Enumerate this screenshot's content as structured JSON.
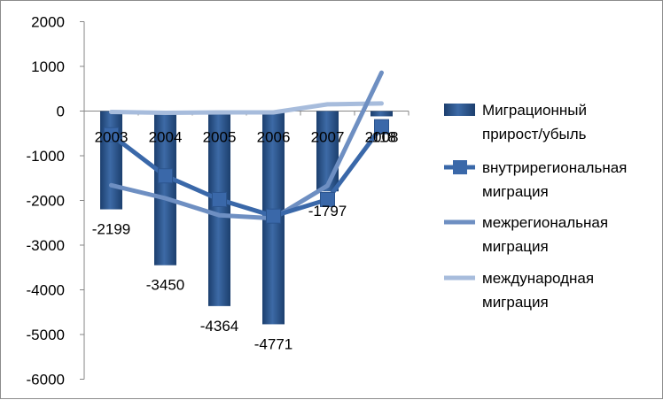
{
  "chart_data": {
    "type": "bar",
    "categories": [
      "2003",
      "2004",
      "2005",
      "2006",
      "2007",
      "2008"
    ],
    "ylim": [
      -6000,
      2000
    ],
    "yticks": [
      2000,
      1000,
      0,
      -1000,
      -2000,
      -3000,
      -4000,
      -5000,
      -6000
    ],
    "grid": false,
    "legend_position": "right",
    "series": [
      {
        "name": "Миграционный прирост/убыль",
        "kind": "bar",
        "values": [
          -2199,
          -3450,
          -4364,
          -4771,
          -1797,
          -118
        ],
        "data_labels": [
          "-2199",
          "-3450",
          "-4364",
          "-4771",
          "-1797",
          "-118"
        ],
        "color": "#254f85"
      },
      {
        "name": "внутрирегиональная миграция",
        "kind": "line",
        "marker": "square",
        "values": [
          -530,
          -1450,
          -1980,
          -2350,
          -1980,
          -350
        ],
        "color": "#3a68a9"
      },
      {
        "name": "межрегиональная миграция",
        "kind": "line",
        "marker": "none",
        "values": [
          -1660,
          -1950,
          -2330,
          -2400,
          -1670,
          860
        ],
        "color": "#6e8fc2"
      },
      {
        "name": "международная миграция",
        "kind": "line",
        "marker": "none",
        "values": [
          -20,
          -40,
          -30,
          -30,
          150,
          170
        ],
        "color": "#a7bcdc"
      }
    ]
  }
}
